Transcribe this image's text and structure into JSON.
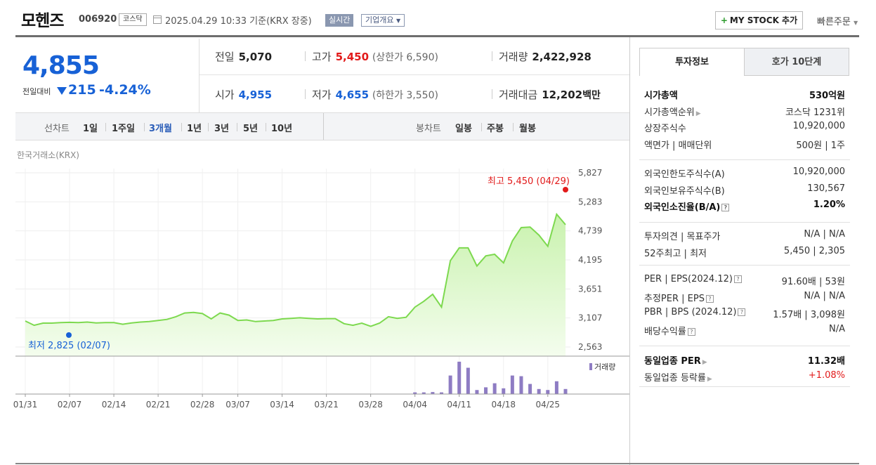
{
  "header": {
    "title": "모헨즈",
    "code": "006920",
    "market": "코스닥",
    "date": "2025.04.29 10:33",
    "basis": "기준(KRX 장중)",
    "realtime": "실시간",
    "company_overview": "기업개요",
    "my_stock_plus": "+",
    "my_stock": "MY STOCK 추가",
    "quick_order": "빠른주문"
  },
  "price": {
    "current": "4,855",
    "change_label": "전일대비",
    "change": "215",
    "change_pct": "-4.24%"
  },
  "summary": {
    "prev_label": "전일",
    "prev": "5,070",
    "high_label": "고가",
    "high": "5,450",
    "upper_limit": "(상한가 6,590)",
    "volume_label": "거래량",
    "volume": "2,422,928",
    "open_label": "시가",
    "open": "4,955",
    "low_label": "저가",
    "low": "4,655",
    "lower_limit": "(하한가 3,550)",
    "amount_label": "거래대금",
    "amount": "12,202",
    "amount_unit": "백만"
  },
  "toolbar": {
    "line_chart_label": "선차트",
    "periods": [
      "1일",
      "1주일",
      "3개월",
      "1년",
      "3년",
      "5년",
      "10년"
    ],
    "active_period": "3개월",
    "candle_label": "봉차트",
    "candles": [
      "일봉",
      "주봉",
      "월봉"
    ]
  },
  "chart_source": "한국거래소(KRX)",
  "chart_data": {
    "type": "area",
    "x": [
      "01/31",
      "02/03",
      "02/04",
      "02/05",
      "02/06",
      "02/07",
      "02/10",
      "02/11",
      "02/12",
      "02/13",
      "02/14",
      "02/17",
      "02/18",
      "02/19",
      "02/20",
      "02/21",
      "02/24",
      "02/25",
      "02/26",
      "02/27",
      "02/28",
      "03/04",
      "03/05",
      "03/06",
      "03/07",
      "03/10",
      "03/11",
      "03/12",
      "03/13",
      "03/14",
      "03/17",
      "03/18",
      "03/19",
      "03/20",
      "03/21",
      "03/24",
      "03/25",
      "03/26",
      "03/27",
      "03/28",
      "03/31",
      "04/01",
      "04/02",
      "04/03",
      "04/04",
      "04/07",
      "04/08",
      "04/09",
      "04/10",
      "04/11",
      "04/14",
      "04/15",
      "04/16",
      "04/17",
      "04/18",
      "04/21",
      "04/22",
      "04/23",
      "04/24",
      "04/25",
      "04/28",
      "04/29"
    ],
    "y": [
      3050,
      2970,
      3010,
      3010,
      3020,
      3025,
      3020,
      3030,
      3015,
      3020,
      3020,
      2990,
      3015,
      3030,
      3040,
      3060,
      3080,
      3130,
      3200,
      3210,
      3190,
      3090,
      3200,
      3160,
      3060,
      3070,
      3040,
      3050,
      3060,
      3090,
      3100,
      3110,
      3100,
      3090,
      3095,
      3095,
      3000,
      2970,
      3010,
      2950,
      3010,
      3130,
      3100,
      3120,
      3310,
      3420,
      3550,
      3310,
      4180,
      4420,
      4420,
      4080,
      4270,
      4300,
      4140,
      4550,
      4800,
      4810,
      4660,
      4450,
      5050,
      4855
    ],
    "ylim": [
      2563,
      5827
    ],
    "yticks": [
      "5,827",
      "5,283",
      "4,739",
      "4,195",
      "3,651",
      "3,107",
      "2,563"
    ],
    "xticks": [
      "01/31",
      "02/07",
      "02/14",
      "02/21",
      "02/28",
      "03/07",
      "03/14",
      "03/21",
      "03/28",
      "04/04",
      "04/11",
      "04/18",
      "04/25"
    ],
    "high_annotation": "최고 5,450 (04/29)",
    "low_annotation": "최저 2,825 (02/07)",
    "volume_label": "거래량",
    "volume": [
      0,
      0,
      0,
      0,
      0,
      0,
      0,
      0,
      0,
      0,
      0,
      0,
      0,
      0,
      0,
      0,
      0,
      0,
      0,
      0,
      0,
      0,
      0,
      0,
      0,
      0,
      0,
      0,
      0,
      0,
      0,
      0,
      0,
      0,
      0,
      0,
      0,
      0,
      0,
      0,
      0,
      0,
      0,
      0,
      0.05,
      0.05,
      0.06,
      0.05,
      0.55,
      0.96,
      0.78,
      0.12,
      0.2,
      0.32,
      0.17,
      0.55,
      0.53,
      0.3,
      0.15,
      0.12,
      0.38,
      0.15
    ],
    "colors": {
      "line": "#7dd94f",
      "fill_top": "#c9f2ae",
      "fill_bottom": "#f4fdee",
      "volume": "#8e7cc3",
      "high": "#e21a1a",
      "low": "#1761d6"
    }
  },
  "tabs": [
    "투자정보",
    "호가 10단계"
  ],
  "invest_info": {
    "g1": [
      {
        "k": "시가총액",
        "v": "530억원",
        "bold": true
      },
      {
        "k": "시가총액순위",
        "v": "코스닥 1231위",
        "caret": true
      },
      {
        "k": "상장주식수",
        "v": "10,920,000"
      },
      {
        "k": "액면가 | 매매단위",
        "v": "500원 | 1주"
      }
    ],
    "g2": [
      {
        "k": "외국인한도주식수(A)",
        "v": "10,920,000"
      },
      {
        "k": "외국인보유주식수(B)",
        "v": "130,567"
      },
      {
        "k": "외국인소진율(B/A)",
        "v": "1.20%",
        "bold": true,
        "q": true
      }
    ],
    "g3": [
      {
        "k": "투자의견 | 목표주가",
        "v": "N/A | N/A"
      },
      {
        "k": "52주최고 | 최저",
        "v": "5,450 | 2,305"
      }
    ],
    "g4": [
      {
        "k": "PER | EPS(2024.12)",
        "v": "91.60배 | 53원",
        "q": true
      },
      {
        "k": "추정PER | EPS",
        "v": "N/A | N/A",
        "q": true
      },
      {
        "k": "PBR | BPS (2024.12)",
        "v": "1.57배 | 3,098원",
        "q": true
      },
      {
        "k": "배당수익률",
        "v": "N/A",
        "q": true
      }
    ],
    "g5": [
      {
        "k": "동일업종 PER",
        "v": "11.32배",
        "bold": true,
        "caret": true
      },
      {
        "k": "동일업종 등락률",
        "v": "+1.08%",
        "caret": true,
        "red": true
      }
    ],
    "q_mark": "?"
  }
}
